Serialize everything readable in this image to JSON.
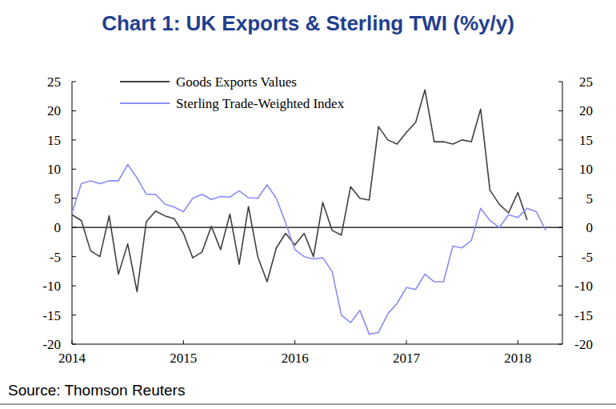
{
  "chart_data": {
    "type": "line",
    "title": "Chart 1: UK Exports & Sterling TWI (%y/y)",
    "source": "Source: Thomson Reuters",
    "x": [
      2014,
      2014.0833,
      2014.1667,
      2014.25,
      2014.3333,
      2014.4167,
      2014.5,
      2014.5833,
      2014.6667,
      2014.75,
      2014.8333,
      2014.9167,
      2015,
      2015.0833,
      2015.1667,
      2015.25,
      2015.3333,
      2015.4167,
      2015.5,
      2015.5833,
      2015.6667,
      2015.75,
      2015.8333,
      2015.9167,
      2016,
      2016.0833,
      2016.1667,
      2016.25,
      2016.3333,
      2016.4167,
      2016.5,
      2016.5833,
      2016.6667,
      2016.75,
      2016.8333,
      2016.9167,
      2017,
      2017.0833,
      2017.1667,
      2017.25,
      2017.3333,
      2017.4167,
      2017.5,
      2017.5833,
      2017.6667,
      2017.75,
      2017.8333,
      2017.9167,
      2018,
      2018.0833,
      2018.1667,
      2018.25
    ],
    "series": [
      {
        "name": "Goods Exports Values",
        "color": "#404040",
        "values": [
          2.2,
          1.2,
          -4,
          -5,
          2,
          -8,
          -2.8,
          -11,
          1,
          2.8,
          2,
          1.5,
          -1,
          -5.2,
          -4.2,
          0.2,
          -3.8,
          2.3,
          -6.3,
          3.6,
          -5,
          -9.3,
          -3.5,
          -1,
          -3,
          -1,
          -5,
          4.3,
          -0.5,
          -1.3,
          7,
          5,
          4.7,
          17.3,
          15,
          14.3,
          16.3,
          18,
          23.6,
          14.7,
          14.7,
          14.3,
          15,
          14.7,
          20.3,
          6.4,
          4,
          2.5,
          6,
          1.3,
          null,
          null
        ]
      },
      {
        "name": "Sterling Trade-Weighted Index",
        "color": "#8c8cf5",
        "axis": "y2",
        "values": [
          2.5,
          7.5,
          8,
          7.5,
          8,
          8,
          10.8,
          8.5,
          5.7,
          5.7,
          4,
          3.5,
          2.7,
          5,
          5.7,
          4.8,
          5.3,
          5.2,
          6.3,
          5.1,
          5,
          7.3,
          5,
          0.8,
          -3.8,
          -5,
          -5.4,
          -5.2,
          -7.5,
          -15,
          -16.3,
          -14.2,
          -18.3,
          -18,
          -14.8,
          -13,
          -10.3,
          -10.6,
          -8,
          -9.3,
          -9.3,
          -3.2,
          -3.5,
          -2.2,
          3.3,
          1.2,
          0,
          2.2,
          1.7,
          3.3,
          2.7,
          -0.5
        ]
      }
    ],
    "xlim": [
      2014,
      2018.4
    ],
    "xticks": [
      2014,
      2015,
      2016,
      2017,
      2018
    ],
    "ylim": [
      -20,
      25
    ],
    "yticks": [
      -20,
      -15,
      -10,
      -5,
      0,
      5,
      10,
      15,
      20,
      25
    ],
    "y2lim": [
      -20,
      25
    ],
    "y2ticks": [
      -20,
      -15,
      -10,
      -5,
      0,
      5,
      10,
      15,
      20,
      25
    ],
    "grid": false,
    "legend": "top-left"
  }
}
